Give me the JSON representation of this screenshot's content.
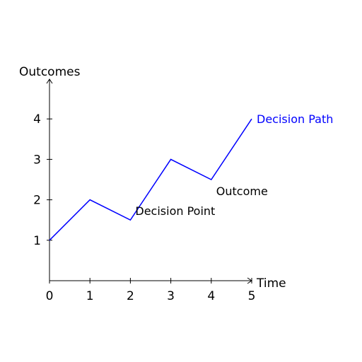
{
  "chart_data": {
    "type": "line",
    "title": "",
    "xlabel": "Time",
    "ylabel": "Outcomes",
    "xlim": [
      0,
      5
    ],
    "ylim": [
      0,
      4.8
    ],
    "x_ticks": [
      0,
      1,
      2,
      3,
      4,
      5
    ],
    "y_ticks": [
      1,
      2,
      3,
      4
    ],
    "grid": false,
    "series": [
      {
        "name": "Decision Path",
        "color": "#0000ff",
        "x": [
          0,
          1,
          2,
          3,
          4,
          5
        ],
        "y": [
          1,
          2,
          1.5,
          3,
          2.5,
          4
        ]
      }
    ],
    "annotations": [
      {
        "text": "Decision Point",
        "x": 2,
        "y": 1.5
      },
      {
        "text": "Outcome",
        "x": 4,
        "y": 2.5
      }
    ]
  }
}
